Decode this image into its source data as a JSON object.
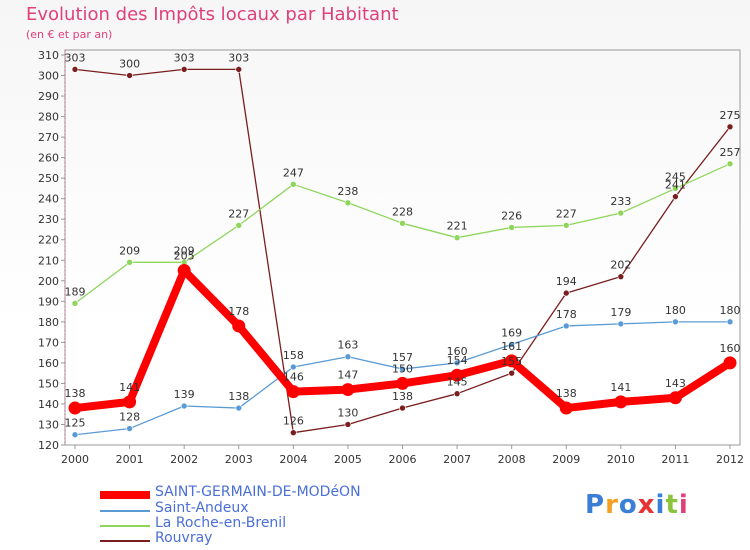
{
  "header": {
    "title": "Evolution des Impôts locaux par Habitant",
    "subtitle": "(en € et par an)"
  },
  "logo": {
    "text": "Proxiti",
    "colors": [
      "#3a7fd5",
      "#f4a020",
      "#3a7fd5",
      "#e63232",
      "#3a7fd5",
      "#8ac43c",
      "#e0407a"
    ]
  },
  "chart_data": {
    "type": "line",
    "title": "Evolution des Impôts locaux par Habitant",
    "subtitle": "(en € et par an)",
    "x": [
      "2000",
      "2001",
      "2002",
      "2003",
      "2004",
      "2005",
      "2006",
      "2007",
      "2008",
      "2009",
      "2010",
      "2011",
      "2012"
    ],
    "ylim": [
      120,
      310
    ],
    "yticks": [
      120,
      130,
      140,
      150,
      160,
      170,
      180,
      190,
      200,
      210,
      220,
      230,
      240,
      250,
      260,
      270,
      280,
      290,
      300,
      310
    ],
    "grid": false,
    "legend_position": "bottom-left",
    "series": [
      {
        "name": "SAINT-GERMAIN-DE-MODéON",
        "color": "#ff0000",
        "values": [
          138,
          141,
          205,
          178,
          146,
          147,
          150,
          154,
          161,
          138,
          141,
          143,
          160
        ]
      },
      {
        "name": "Saint-Andeux",
        "color": "#5b9bd5",
        "values": [
          125,
          128,
          139,
          138,
          158,
          163,
          157,
          160,
          169,
          178,
          179,
          180,
          180
        ]
      },
      {
        "name": "La Roche-en-Brenil",
        "color": "#8ed65b",
        "values": [
          189,
          209,
          209,
          227,
          247,
          238,
          228,
          221,
          226,
          227,
          233,
          245,
          257
        ]
      },
      {
        "name": "Rouvray",
        "color": "#7a1e1e",
        "values": [
          303,
          300,
          303,
          303,
          126,
          130,
          138,
          145,
          155,
          194,
          202,
          241,
          275
        ]
      }
    ]
  }
}
